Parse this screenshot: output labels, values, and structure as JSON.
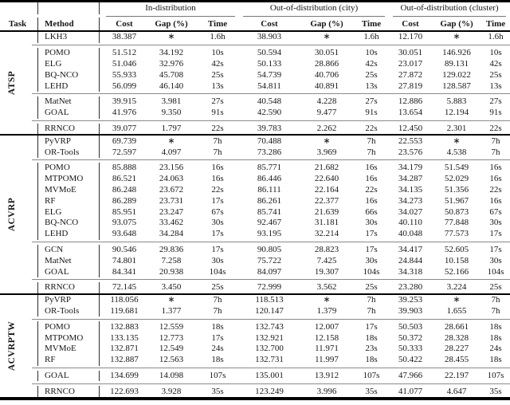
{
  "header": {
    "task": "Task",
    "method": "Method",
    "groups": [
      {
        "label": "In-distribution"
      },
      {
        "label": "Out-of-distribution (city)"
      },
      {
        "label": "Out-of-distribution (cluster)"
      }
    ],
    "metrics": [
      "Cost",
      "Gap (%)",
      "Time"
    ]
  },
  "sections": [
    {
      "task": "ATSP",
      "blocks": [
        {
          "rows": [
            {
              "method": "LKH3",
              "values": [
                "38.387",
                "∗",
                "1.6h",
                "38.903",
                "∗",
                "1.6h",
                "12.170",
                "∗",
                "1.6h"
              ]
            }
          ]
        },
        {
          "rows": [
            {
              "method": "POMO",
              "values": [
                "51.512",
                "34.192",
                "10s",
                "50.594",
                "30.051",
                "10s",
                "30.051",
                "146.926",
                "10s"
              ]
            },
            {
              "method": "ELG",
              "values": [
                "51.046",
                "32.976",
                "42s",
                "50.133",
                "28.866",
                "42s",
                "23.017",
                "89.131",
                "42s"
              ]
            },
            {
              "method": "BQ-NCO",
              "values": [
                "55.933",
                "45.708",
                "25s",
                "54.739",
                "40.706",
                "25s",
                "27.872",
                "129.022",
                "25s"
              ]
            },
            {
              "method": "LEHD",
              "values": [
                "56.099",
                "46.140",
                "13s",
                "54.811",
                "40.891",
                "13s",
                "27.819",
                "128.587",
                "13s"
              ]
            }
          ]
        },
        {
          "rows": [
            {
              "method": "MatNet",
              "values": [
                "39.915",
                "3.981",
                "27s",
                "40.548",
                "4.228",
                "27s",
                "12.886",
                "5.883",
                "27s"
              ]
            },
            {
              "method": "GOAL",
              "values": [
                "41.976",
                "9.350",
                "91s",
                "42.590",
                "9.477",
                "91s",
                "13.654",
                "12.194",
                "91s"
              ]
            }
          ]
        },
        {
          "rows": [
            {
              "method": "RRNCO",
              "values": [
                "39.077",
                "1.797",
                "22s",
                "39.783",
                "2.262",
                "22s",
                "12.450",
                "2.301",
                "22s"
              ]
            }
          ]
        }
      ]
    },
    {
      "task": "ACVRP",
      "blocks": [
        {
          "rows": [
            {
              "method": "PyVRP",
              "values": [
                "69.739",
                "∗",
                "7h",
                "70.488",
                "∗",
                "7h",
                "22.553",
                "∗",
                "7h"
              ]
            },
            {
              "method": "OR-Tools",
              "values": [
                "72.597",
                "4.097",
                "7h",
                "73.286",
                "3.969",
                "7h",
                "23.576",
                "4.538",
                "7h"
              ]
            }
          ]
        },
        {
          "rows": [
            {
              "method": "POMO",
              "values": [
                "85.888",
                "23.156",
                "16s",
                "85.771",
                "21.682",
                "16s",
                "34.179",
                "51.549",
                "16s"
              ]
            },
            {
              "method": "MTPOMO",
              "values": [
                "86.521",
                "24.063",
                "16s",
                "86.446",
                "22.640",
                "16s",
                "34.287",
                "52.029",
                "16s"
              ]
            },
            {
              "method": "MVMoE",
              "values": [
                "86.248",
                "23.672",
                "22s",
                "86.111",
                "22.164",
                "22s",
                "34.135",
                "51.356",
                "22s"
              ]
            },
            {
              "method": "RF",
              "values": [
                "86.289",
                "23.731",
                "17s",
                "86.261",
                "22.377",
                "16s",
                "34.273",
                "51.967",
                "16s"
              ]
            },
            {
              "method": "ELG",
              "values": [
                "85.951",
                "23.247",
                "67s",
                "85.741",
                "21.639",
                "66s",
                "34.027",
                "50.873",
                "67s"
              ]
            },
            {
              "method": "BQ-NCO",
              "values": [
                "93.075",
                "33.462",
                "30s",
                "92.467",
                "31.181",
                "30s",
                "40.110",
                "77.848",
                "30s"
              ]
            },
            {
              "method": "LEHD",
              "values": [
                "93.648",
                "34.284",
                "17s",
                "93.195",
                "32.214",
                "17s",
                "40.048",
                "77.573",
                "17s"
              ]
            }
          ]
        },
        {
          "rows": [
            {
              "method": "GCN",
              "values": [
                "90.546",
                "29.836",
                "17s",
                "90.805",
                "28.823",
                "17s",
                "34.417",
                "52.605",
                "17s"
              ]
            },
            {
              "method": "MatNet",
              "values": [
                "74.801",
                "7.258",
                "30s",
                "75.722",
                "7.425",
                "30s",
                "24.844",
                "10.158",
                "30s"
              ]
            },
            {
              "method": "GOAL",
              "values": [
                "84.341",
                "20.938",
                "104s",
                "84.097",
                "19.307",
                "104s",
                "34.318",
                "52.166",
                "104s"
              ]
            }
          ]
        },
        {
          "rows": [
            {
              "method": "RRNCO",
              "values": [
                "72.145",
                "3.450",
                "25s",
                "72.999",
                "3.562",
                "25s",
                "23.280",
                "3.224",
                "25s"
              ]
            }
          ]
        }
      ]
    },
    {
      "task": "ACVRPTW",
      "blocks": [
        {
          "rows": [
            {
              "method": "PyVRP",
              "values": [
                "118.056",
                "∗",
                "7h",
                "118.513",
                "∗",
                "7h",
                "39.253",
                "∗",
                "7h"
              ]
            },
            {
              "method": "OR-Tools",
              "values": [
                "119.681",
                "1.377",
                "7h",
                "120.147",
                "1.379",
                "7h",
                "39.903",
                "1.655",
                "7h"
              ]
            }
          ]
        },
        {
          "rows": [
            {
              "method": "POMO",
              "values": [
                "132.883",
                "12.559",
                "18s",
                "132.743",
                "12.007",
                "17s",
                "50.503",
                "28.661",
                "18s"
              ]
            },
            {
              "method": "MTPOMO",
              "values": [
                "133.135",
                "12.773",
                "17s",
                "132.921",
                "12.158",
                "18s",
                "50.372",
                "28.328",
                "18s"
              ]
            },
            {
              "method": "MVMoE",
              "values": [
                "132.871",
                "12.549",
                "24s",
                "132.700",
                "11.971",
                "23s",
                "50.333",
                "28.227",
                "24s"
              ]
            },
            {
              "method": "RF",
              "values": [
                "132.887",
                "12.563",
                "18s",
                "132.731",
                "11.997",
                "18s",
                "50.422",
                "28.455",
                "18s"
              ]
            }
          ]
        },
        {
          "rows": [
            {
              "method": "GOAL",
              "values": [
                "134.699",
                "14.098",
                "107s",
                "135.001",
                "13.912",
                "107s",
                "47.966",
                "22.197",
                "107s"
              ]
            }
          ]
        },
        {
          "rows": [
            {
              "method": "RRNCO",
              "values": [
                "122.693",
                "3.928",
                "35s",
                "123.249",
                "3.996",
                "35s",
                "41.077",
                "4.647",
                "35s"
              ]
            }
          ]
        }
      ]
    }
  ]
}
